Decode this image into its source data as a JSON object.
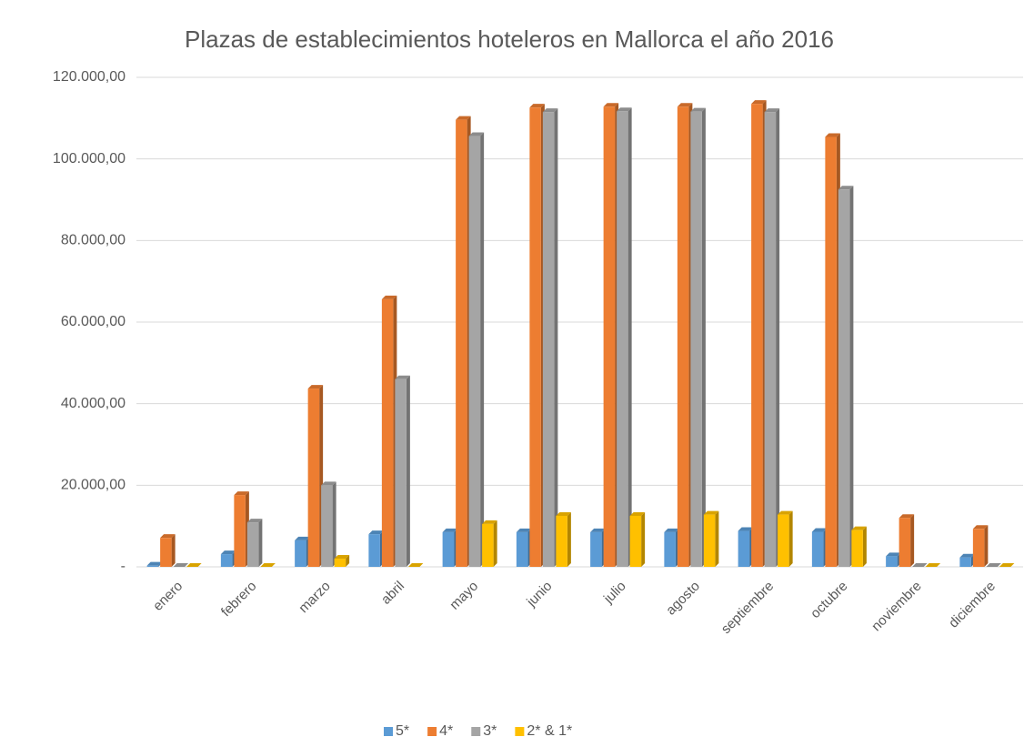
{
  "chart_data": {
    "type": "bar3d",
    "title": "Plazas de establecimientos hoteleros en Mallorca el año 2016",
    "categories": [
      "enero",
      "febrero",
      "marzo",
      "abril",
      "mayo",
      "junio",
      "julio",
      "agosto",
      "septiembre",
      "octubre",
      "noviembre",
      "diciembre"
    ],
    "series": [
      {
        "name": "5*",
        "color": "#5b9bd5",
        "values": [
          300,
          3100,
          6500,
          8000,
          8500,
          8500,
          8500,
          8500,
          8800,
          8600,
          2600,
          2300
        ]
      },
      {
        "name": "4*",
        "color": "#ed7d31",
        "values": [
          7100,
          17600,
          43700,
          65600,
          109600,
          112600,
          112800,
          112800,
          113500,
          105400,
          12000,
          9300
        ]
      },
      {
        "name": "3*",
        "color": "#a5a5a5",
        "values": [
          0,
          10900,
          20000,
          46000,
          105600,
          111500,
          111700,
          111600,
          111500,
          92500,
          0,
          0
        ]
      },
      {
        "name": "2* & 1*",
        "color": "#ffc000",
        "values": [
          0,
          0,
          2000,
          0,
          10500,
          12500,
          12500,
          12800,
          12800,
          9000,
          0,
          0
        ]
      }
    ],
    "ylim": [
      0,
      120000
    ],
    "yticks": [
      {
        "value": 0,
        "label": "-"
      },
      {
        "value": 20000,
        "label": "20.000,00"
      },
      {
        "value": 40000,
        "label": "40.000,00"
      },
      {
        "value": 60000,
        "label": "60.000,00"
      },
      {
        "value": 80000,
        "label": "80.000,00"
      },
      {
        "value": 100000,
        "label": "100.000,00"
      },
      {
        "value": 120000,
        "label": "120.000,00"
      }
    ],
    "grid": true,
    "legend": "bottom"
  }
}
